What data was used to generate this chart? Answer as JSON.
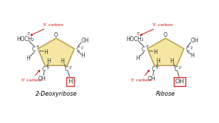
{
  "bg_color": "#ffffff",
  "pentagon_color": "#f5e6a3",
  "pentagon_edge_color": "#b8a050",
  "bond_color": "#555555",
  "text_color": "#333333",
  "red_color": "#cc0000",
  "box_color": "#cc2222",
  "title1": "2-Deoxyribose",
  "title2": "Ribose",
  "label1_box": "H",
  "label2_box": "OH",
  "fs_main": 5.5,
  "fs_small": 4.0,
  "fs_title": 6.0
}
